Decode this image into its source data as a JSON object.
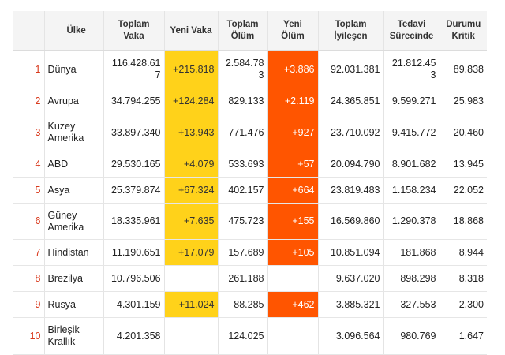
{
  "table": {
    "headers": {
      "rank": "",
      "country": "Ülke",
      "total_cases": "Toplam Vaka",
      "new_cases": "Yeni Vaka",
      "total_deaths": "Toplam Ölüm",
      "new_deaths": "Yeni Ölüm",
      "total_recovered": "Toplam İyileşen",
      "active": "Tedavi Sürecinde",
      "critical": "Durumu Kritik"
    },
    "rows": [
      {
        "rank": "1",
        "country": "Dünya",
        "total_cases": "116.428.617",
        "new_cases": "+215.818",
        "total_deaths": "2.584.783",
        "new_deaths": "+3.886",
        "total_recovered": "92.031.381",
        "active": "21.812.453",
        "critical": "89.838"
      },
      {
        "rank": "2",
        "country": "Avrupa",
        "total_cases": "34.794.255",
        "new_cases": "+124.284",
        "total_deaths": "829.133",
        "new_deaths": "+2.119",
        "total_recovered": "24.365.851",
        "active": "9.599.271",
        "critical": "25.983"
      },
      {
        "rank": "3",
        "country": "Kuzey Amerika",
        "total_cases": "33.897.340",
        "new_cases": "+13.943",
        "total_deaths": "771.476",
        "new_deaths": "+927",
        "total_recovered": "23.710.092",
        "active": "9.415.772",
        "critical": "20.460"
      },
      {
        "rank": "4",
        "country": "ABD",
        "total_cases": "29.530.165",
        "new_cases": "+4.079",
        "total_deaths": "533.693",
        "new_deaths": "+57",
        "total_recovered": "20.094.790",
        "active": "8.901.682",
        "critical": "13.945"
      },
      {
        "rank": "5",
        "country": "Asya",
        "total_cases": "25.379.874",
        "new_cases": "+67.324",
        "total_deaths": "402.157",
        "new_deaths": "+664",
        "total_recovered": "23.819.483",
        "active": "1.158.234",
        "critical": "22.052"
      },
      {
        "rank": "6",
        "country": "Güney Amerika",
        "total_cases": "18.335.961",
        "new_cases": "+7.635",
        "total_deaths": "475.723",
        "new_deaths": "+155",
        "total_recovered": "16.569.860",
        "active": "1.290.378",
        "critical": "18.868"
      },
      {
        "rank": "7",
        "country": "Hindistan",
        "total_cases": "11.190.651",
        "new_cases": "+17.079",
        "total_deaths": "157.689",
        "new_deaths": "+105",
        "total_recovered": "10.851.094",
        "active": "181.868",
        "critical": "8.944"
      },
      {
        "rank": "8",
        "country": "Brezilya",
        "total_cases": "10.796.506",
        "new_cases": "",
        "total_deaths": "261.188",
        "new_deaths": "",
        "total_recovered": "9.637.020",
        "active": "898.298",
        "critical": "8.318"
      },
      {
        "rank": "9",
        "country": "Rusya",
        "total_cases": "4.301.159",
        "new_cases": "+11.024",
        "total_deaths": "88.285",
        "new_deaths": "+462",
        "total_recovered": "3.885.321",
        "active": "327.553",
        "critical": "2.300"
      },
      {
        "rank": "10",
        "country": "Birleşik Krallık",
        "total_cases": "4.201.358",
        "new_cases": "",
        "total_deaths": "124.025",
        "new_deaths": "",
        "total_recovered": "3.096.564",
        "active": "980.769",
        "critical": "1.647"
      }
    ]
  }
}
